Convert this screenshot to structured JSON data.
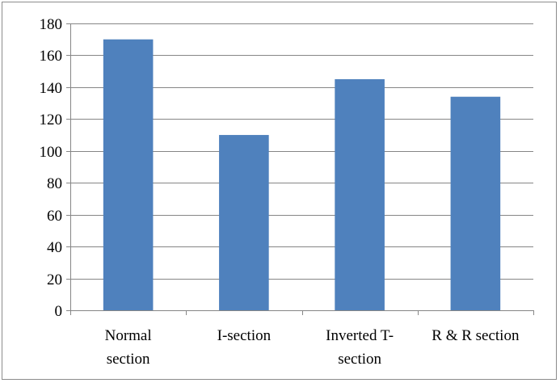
{
  "chart_data": {
    "type": "bar",
    "categories": [
      "Normal section",
      "I-section",
      "Inverted T-section",
      "R & R section"
    ],
    "category_label_lines": [
      [
        "Normal",
        "section"
      ],
      [
        "I-section"
      ],
      [
        "Inverted T-",
        "section"
      ],
      [
        "R & R section"
      ]
    ],
    "values": [
      170,
      110,
      145,
      134
    ],
    "ylim": [
      0,
      180
    ],
    "yticks": [
      0,
      20,
      40,
      60,
      80,
      100,
      120,
      140,
      160,
      180
    ],
    "grid": true,
    "legend": "none",
    "colors": {
      "bar": "#4f81bd",
      "grid": "#868686",
      "axis": "#868686",
      "text": "#000000"
    }
  }
}
